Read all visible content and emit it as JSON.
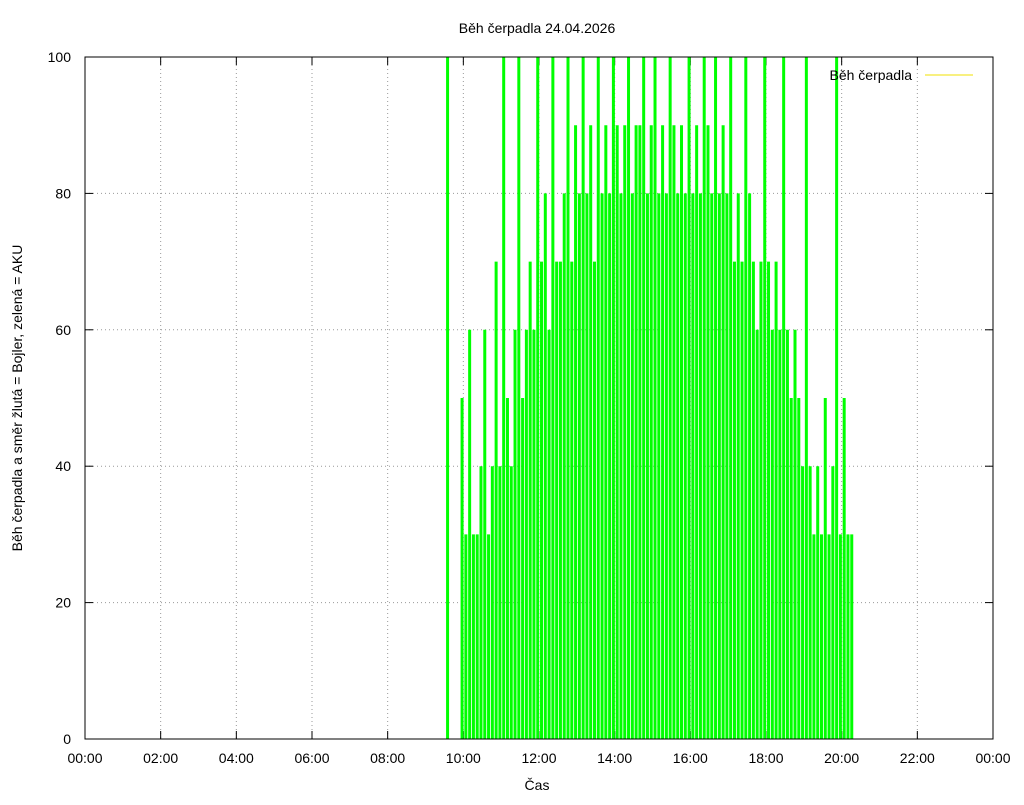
{
  "chart_data": {
    "type": "impulses",
    "title": "Běh čerpadla 24.04.2026",
    "xlabel": "Čas",
    "ylabel": "Běh čerpadla a směr žlutá = Bojler, zelená = AKU",
    "xlim": [
      0,
      1440
    ],
    "xticks": [
      {
        "value": 0,
        "label": "00:00"
      },
      {
        "value": 120,
        "label": "02:00"
      },
      {
        "value": 240,
        "label": "04:00"
      },
      {
        "value": 360,
        "label": "06:00"
      },
      {
        "value": 480,
        "label": "08:00"
      },
      {
        "value": 600,
        "label": "10:00"
      },
      {
        "value": 720,
        "label": "12:00"
      },
      {
        "value": 840,
        "label": "14:00"
      },
      {
        "value": 960,
        "label": "16:00"
      },
      {
        "value": 1080,
        "label": "18:00"
      },
      {
        "value": 1200,
        "label": "20:00"
      },
      {
        "value": 1320,
        "label": "22:00"
      },
      {
        "value": 1440,
        "label": "00:00"
      }
    ],
    "ylim": [
      0,
      100
    ],
    "yticks": [
      0,
      20,
      40,
      60,
      80,
      100
    ],
    "grid": true,
    "legend": {
      "name": "Běh čerpadla",
      "color": "#f0e000"
    },
    "x": [
      575,
      598,
      604,
      610,
      616,
      622,
      628,
      634,
      640,
      646,
      652,
      658,
      664,
      670,
      676,
      682,
      688,
      694,
      700,
      706,
      712,
      718,
      724,
      730,
      736,
      742,
      748,
      754,
      760,
      766,
      772,
      778,
      784,
      790,
      796,
      802,
      808,
      814,
      820,
      826,
      832,
      838,
      844,
      850,
      856,
      862,
      868,
      874,
      880,
      886,
      892,
      898,
      904,
      910,
      916,
      922,
      928,
      934,
      940,
      946,
      952,
      958,
      964,
      970,
      976,
      982,
      988,
      994,
      1000,
      1006,
      1012,
      1018,
      1024,
      1030,
      1036,
      1042,
      1048,
      1054,
      1060,
      1066,
      1072,
      1078,
      1084,
      1090,
      1096,
      1102,
      1108,
      1114,
      1120,
      1126,
      1132,
      1138,
      1144,
      1150,
      1156,
      1162,
      1168,
      1174,
      1180,
      1186,
      1192,
      1198,
      1204,
      1210,
      1216
    ],
    "series": [
      {
        "color": "#00ff00",
        "values": [
          100,
          50,
          30,
          60,
          30,
          30,
          40,
          60,
          30,
          40,
          70,
          40,
          100,
          50,
          40,
          60,
          100,
          50,
          60,
          70,
          60,
          100,
          70,
          80,
          60,
          100,
          70,
          70,
          80,
          100,
          70,
          90,
          80,
          100,
          80,
          90,
          70,
          100,
          80,
          90,
          80,
          100,
          90,
          80,
          90,
          100,
          80,
          90,
          90,
          100,
          80,
          90,
          100,
          80,
          90,
          80,
          100,
          90,
          80,
          90,
          80,
          100,
          80,
          90,
          80,
          100,
          90,
          80,
          100,
          80,
          90,
          80,
          100,
          70,
          80,
          70,
          100,
          80,
          70,
          60,
          70,
          100,
          70,
          60,
          70,
          60,
          100,
          60,
          50,
          60,
          50,
          40,
          100,
          40,
          30,
          40,
          30,
          50,
          30,
          40,
          100,
          30,
          50,
          30,
          30
        ]
      }
    ]
  }
}
